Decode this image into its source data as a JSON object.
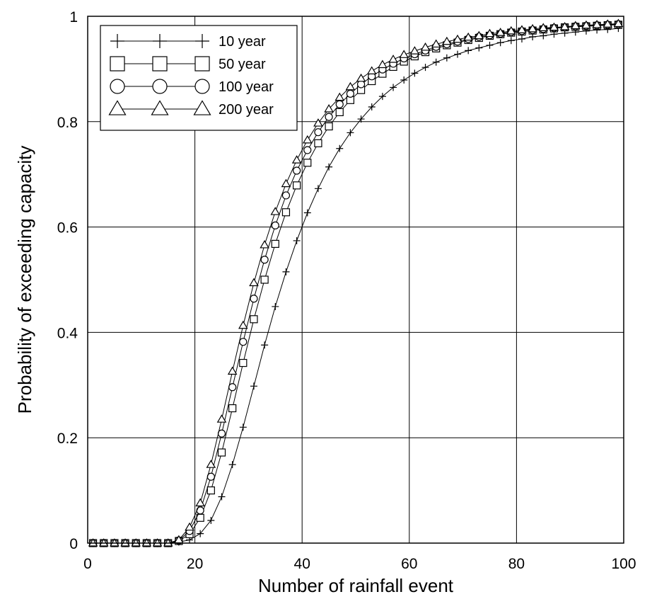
{
  "chart_data": {
    "type": "line",
    "title": "",
    "xlabel": "Number of rainfall event",
    "ylabel": "Probability of exceeding capacity",
    "xlim": [
      0,
      100
    ],
    "ylim": [
      0,
      1
    ],
    "xticks": [
      0,
      20,
      40,
      60,
      80,
      100
    ],
    "yticks": [
      0,
      0.2,
      0.4,
      0.6,
      0.8,
      1
    ],
    "xtick_labels": [
      "0",
      "20",
      "40",
      "60",
      "80",
      "100"
    ],
    "ytick_labels": [
      "0",
      "0.2",
      "0.4",
      "0.6",
      "0.8",
      "1"
    ],
    "grid": true,
    "legend_position": "top-left",
    "x": [
      1,
      3,
      5,
      7,
      9,
      11,
      13,
      15,
      17,
      19,
      21,
      23,
      25,
      27,
      29,
      31,
      33,
      35,
      37,
      39,
      41,
      43,
      45,
      47,
      49,
      51,
      53,
      55,
      57,
      59,
      61,
      63,
      65,
      67,
      69,
      71,
      73,
      75,
      77,
      79,
      81,
      83,
      85,
      87,
      89,
      91,
      93,
      95,
      97,
      99
    ],
    "series": [
      {
        "name": "10 year",
        "marker": "plus",
        "values": [
          0,
          0,
          0,
          0,
          0,
          0,
          0,
          0,
          0.002,
          0.006,
          0.018,
          0.043,
          0.088,
          0.149,
          0.22,
          0.298,
          0.376,
          0.449,
          0.515,
          0.574,
          0.627,
          0.673,
          0.714,
          0.749,
          0.779,
          0.805,
          0.828,
          0.848,
          0.865,
          0.879,
          0.892,
          0.903,
          0.913,
          0.921,
          0.928,
          0.935,
          0.94,
          0.945,
          0.95,
          0.954,
          0.957,
          0.961,
          0.963,
          0.966,
          0.968,
          0.97,
          0.972,
          0.974,
          0.975,
          0.977
        ]
      },
      {
        "name": "50 year",
        "marker": "square",
        "values": [
          0,
          0,
          0,
          0,
          0,
          0,
          0,
          0,
          0.004,
          0.017,
          0.048,
          0.1,
          0.172,
          0.256,
          0.342,
          0.425,
          0.5,
          0.568,
          0.628,
          0.679,
          0.722,
          0.759,
          0.791,
          0.818,
          0.841,
          0.86,
          0.877,
          0.891,
          0.904,
          0.914,
          0.924,
          0.932,
          0.939,
          0.945,
          0.95,
          0.955,
          0.959,
          0.963,
          0.966,
          0.969,
          0.971,
          0.973,
          0.975,
          0.977,
          0.979,
          0.98,
          0.981,
          0.982,
          0.983,
          0.984
        ]
      },
      {
        "name": "100 year",
        "marker": "circle",
        "values": [
          0,
          0,
          0,
          0,
          0,
          0,
          0,
          0,
          0.005,
          0.023,
          0.062,
          0.126,
          0.208,
          0.296,
          0.382,
          0.464,
          0.538,
          0.603,
          0.66,
          0.707,
          0.746,
          0.78,
          0.809,
          0.833,
          0.853,
          0.871,
          0.886,
          0.899,
          0.91,
          0.92,
          0.928,
          0.935,
          0.942,
          0.947,
          0.952,
          0.957,
          0.961,
          0.964,
          0.967,
          0.97,
          0.972,
          0.974,
          0.976,
          0.978,
          0.979,
          0.981,
          0.982,
          0.983,
          0.984,
          0.985
        ]
      },
      {
        "name": "200 year",
        "marker": "triangle",
        "values": [
          0,
          0,
          0,
          0,
          0,
          0,
          0,
          0,
          0.006,
          0.03,
          0.076,
          0.149,
          0.235,
          0.326,
          0.413,
          0.494,
          0.566,
          0.629,
          0.682,
          0.727,
          0.765,
          0.797,
          0.824,
          0.846,
          0.866,
          0.882,
          0.896,
          0.908,
          0.918,
          0.927,
          0.934,
          0.941,
          0.947,
          0.952,
          0.956,
          0.96,
          0.963,
          0.967,
          0.969,
          0.972,
          0.974,
          0.976,
          0.978,
          0.979,
          0.98,
          0.982,
          0.983,
          0.984,
          0.985,
          0.986
        ]
      }
    ]
  }
}
